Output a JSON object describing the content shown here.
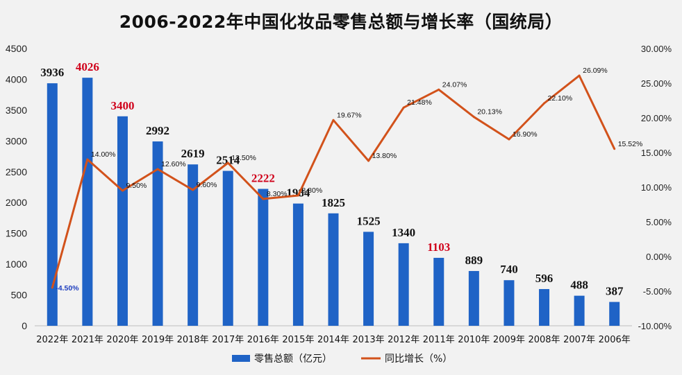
{
  "chart_data": {
    "type": "bar",
    "title": "2006-2022年中国化妆品零售总额与增长率（国统局）",
    "categories": [
      "2022年",
      "2021年",
      "2020年",
      "2019年",
      "2018年",
      "2017年",
      "2016年",
      "2015年",
      "2014年",
      "2013年",
      "2012年",
      "2011年",
      "2010年",
      "2009年",
      "2008年",
      "2007年",
      "2006年"
    ],
    "series": [
      {
        "name": "零售总额（亿元）",
        "type": "bar",
        "axis": "left",
        "color": "#1f63c6",
        "values": [
          3936,
          4026,
          3400,
          2992,
          2619,
          2514,
          2222,
          1984,
          1825,
          1525,
          1340,
          1103,
          889,
          740,
          596,
          488,
          387
        ],
        "highlighted": [
          "2021年",
          "2020年",
          "2016年",
          "2011年"
        ]
      },
      {
        "name": "同比增长（%）",
        "type": "line",
        "axis": "right",
        "color": "#d2521b",
        "values": [
          -4.5,
          14.0,
          9.5,
          12.6,
          9.6,
          13.5,
          8.3,
          8.8,
          19.67,
          13.8,
          21.48,
          24.07,
          20.13,
          16.9,
          22.1,
          26.09,
          15.52
        ],
        "labels": [
          "-4.50%",
          "14.00%",
          "9.50%",
          "12.60%",
          "9.60%",
          "13.50%",
          "8.30%",
          "8.80%",
          "19.67%",
          "13.80%",
          "21.48%",
          "24.07%",
          "20.13%",
          "16.90%",
          "22.10%",
          "26.09%",
          "15.52%"
        ]
      }
    ],
    "bar_labels": [
      "3936",
      "4026",
      "3400",
      "2992",
      "2619",
      "2514",
      "2222",
      "1984",
      "1825",
      "1525",
      "1340",
      "1103",
      "889",
      "740",
      "596",
      "488",
      "387"
    ],
    "y_left": {
      "min": 0,
      "max": 4500,
      "step": 500,
      "ticks": [
        "0",
        "500",
        "1000",
        "1500",
        "2000",
        "2500",
        "3000",
        "3500",
        "4000",
        "4500"
      ]
    },
    "y_right": {
      "min": -10,
      "max": 30,
      "step": 5,
      "ticks": [
        "-10.00%",
        "-5.00%",
        "0.00%",
        "5.00%",
        "10.00%",
        "15.00%",
        "20.00%",
        "25.00%",
        "30.00%"
      ]
    },
    "grid": false,
    "legend_position": "bottom",
    "legend": [
      "零售总额（亿元）",
      "同比增长（%）"
    ],
    "highlight_color": "#d0021b"
  }
}
